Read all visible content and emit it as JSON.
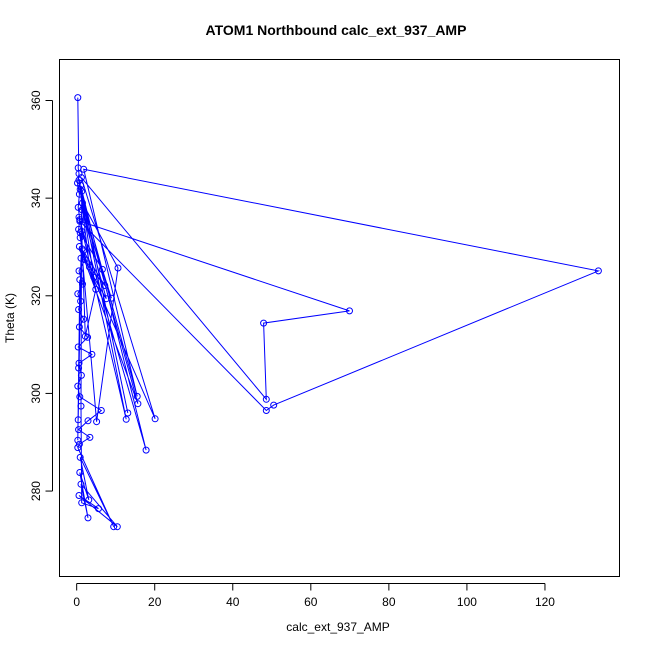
{
  "chart_data": {
    "type": "scatter",
    "title": "ATOM1 Northbound calc_ext_937_AMP",
    "xlabel": "calc_ext_937_AMP",
    "ylabel": "Theta (K)",
    "xlim": [
      -4.4,
      139.1
    ],
    "ylim": [
      262.5,
      368.4
    ],
    "xticks": [
      0,
      20,
      40,
      60,
      80,
      100,
      120
    ],
    "yticks": [
      280,
      300,
      320,
      340,
      360
    ],
    "grid": false,
    "legend": "none",
    "connected": true,
    "color": "#0000ff",
    "points": [
      {
        "x": 0.3,
        "y": 360.6
      },
      {
        "x": 0.5,
        "y": 348.3
      },
      {
        "x": 0.4,
        "y": 346.2
      },
      {
        "x": 0.6,
        "y": 345.0
      },
      {
        "x": 0.2,
        "y": 343.1
      },
      {
        "x": 0.7,
        "y": 340.8
      },
      {
        "x": 0.4,
        "y": 338.1
      },
      {
        "x": 0.8,
        "y": 335.6
      },
      {
        "x": 0.5,
        "y": 333.6
      },
      {
        "x": 0.9,
        "y": 331.9
      },
      {
        "x": 1.4,
        "y": 329.6
      },
      {
        "x": 2.1,
        "y": 327.4
      },
      {
        "x": 0.6,
        "y": 325.1
      },
      {
        "x": 1.5,
        "y": 322.4
      },
      {
        "x": 0.3,
        "y": 320.4
      },
      {
        "x": 1.0,
        "y": 318.9
      },
      {
        "x": 0.5,
        "y": 317.2
      },
      {
        "x": 1.8,
        "y": 315.2
      },
      {
        "x": 0.7,
        "y": 313.6
      },
      {
        "x": 2.8,
        "y": 311.5
      },
      {
        "x": 0.4,
        "y": 309.5
      },
      {
        "x": 3.9,
        "y": 308.0
      },
      {
        "x": 0.6,
        "y": 306.2
      },
      {
        "x": 1.2,
        "y": 303.7
      },
      {
        "x": 0.3,
        "y": 301.5
      },
      {
        "x": 0.8,
        "y": 299.3
      },
      {
        "x": 6.3,
        "y": 296.5
      },
      {
        "x": 2.9,
        "y": 294.4
      },
      {
        "x": 0.5,
        "y": 292.6
      },
      {
        "x": 3.4,
        "y": 291.0
      },
      {
        "x": 0.7,
        "y": 289.6
      },
      {
        "x": 0.3,
        "y": 288.9
      },
      {
        "x": 9.5,
        "y": 272.7
      },
      {
        "x": 0.9,
        "y": 286.9
      },
      {
        "x": 3.1,
        "y": 278.2
      },
      {
        "x": 0.8,
        "y": 283.8
      },
      {
        "x": 2.9,
        "y": 274.5
      },
      {
        "x": 1.1,
        "y": 281.4
      },
      {
        "x": 10.4,
        "y": 272.7
      },
      {
        "x": 0.6,
        "y": 279.1
      },
      {
        "x": 5.6,
        "y": 276.4
      },
      {
        "x": 1.3,
        "y": 277.6
      },
      {
        "x": 1.1,
        "y": 297.4
      },
      {
        "x": 1.3,
        "y": 341.4
      },
      {
        "x": 13.1,
        "y": 296.0
      },
      {
        "x": 1.0,
        "y": 342.6
      },
      {
        "x": 17.8,
        "y": 288.4
      },
      {
        "x": 0.6,
        "y": 336.1
      },
      {
        "x": 12.7,
        "y": 294.7
      },
      {
        "x": 0.9,
        "y": 341.8
      },
      {
        "x": 15.5,
        "y": 299.4
      },
      {
        "x": 1.8,
        "y": 345.9
      },
      {
        "x": 133.7,
        "y": 325.1
      },
      {
        "x": 50.5,
        "y": 297.6
      },
      {
        "x": 48.6,
        "y": 296.5
      },
      {
        "x": 0.8,
        "y": 335.3
      },
      {
        "x": 69.9,
        "y": 316.9
      },
      {
        "x": 47.9,
        "y": 314.4
      },
      {
        "x": 48.6,
        "y": 298.8
      },
      {
        "x": 1.2,
        "y": 344.2
      },
      {
        "x": 20.1,
        "y": 294.8
      },
      {
        "x": 0.7,
        "y": 330.1
      },
      {
        "x": 15.7,
        "y": 297.9
      },
      {
        "x": 1.5,
        "y": 339.0
      },
      {
        "x": 10.6,
        "y": 325.7
      },
      {
        "x": 5.1,
        "y": 294.2
      },
      {
        "x": 0.9,
        "y": 332.9
      },
      {
        "x": 6.6,
        "y": 325.4
      },
      {
        "x": 8.9,
        "y": 319.5
      },
      {
        "x": 1.4,
        "y": 337.6
      },
      {
        "x": 7.6,
        "y": 319.4
      },
      {
        "x": 4.4,
        "y": 323.8
      },
      {
        "x": 0.6,
        "y": 343.7
      },
      {
        "x": 3.3,
        "y": 325.9
      },
      {
        "x": 7.2,
        "y": 322.1
      },
      {
        "x": 1.7,
        "y": 329.2
      },
      {
        "x": 4.9,
        "y": 321.3
      },
      {
        "x": 2.2,
        "y": 311.7
      },
      {
        "x": 1.3,
        "y": 333.2
      },
      {
        "x": 0.5,
        "y": 305.2
      },
      {
        "x": 1.1,
        "y": 327.7
      },
      {
        "x": 0.4,
        "y": 294.6
      },
      {
        "x": 0.8,
        "y": 323.3
      },
      {
        "x": 0.3,
        "y": 290.4
      }
    ]
  }
}
